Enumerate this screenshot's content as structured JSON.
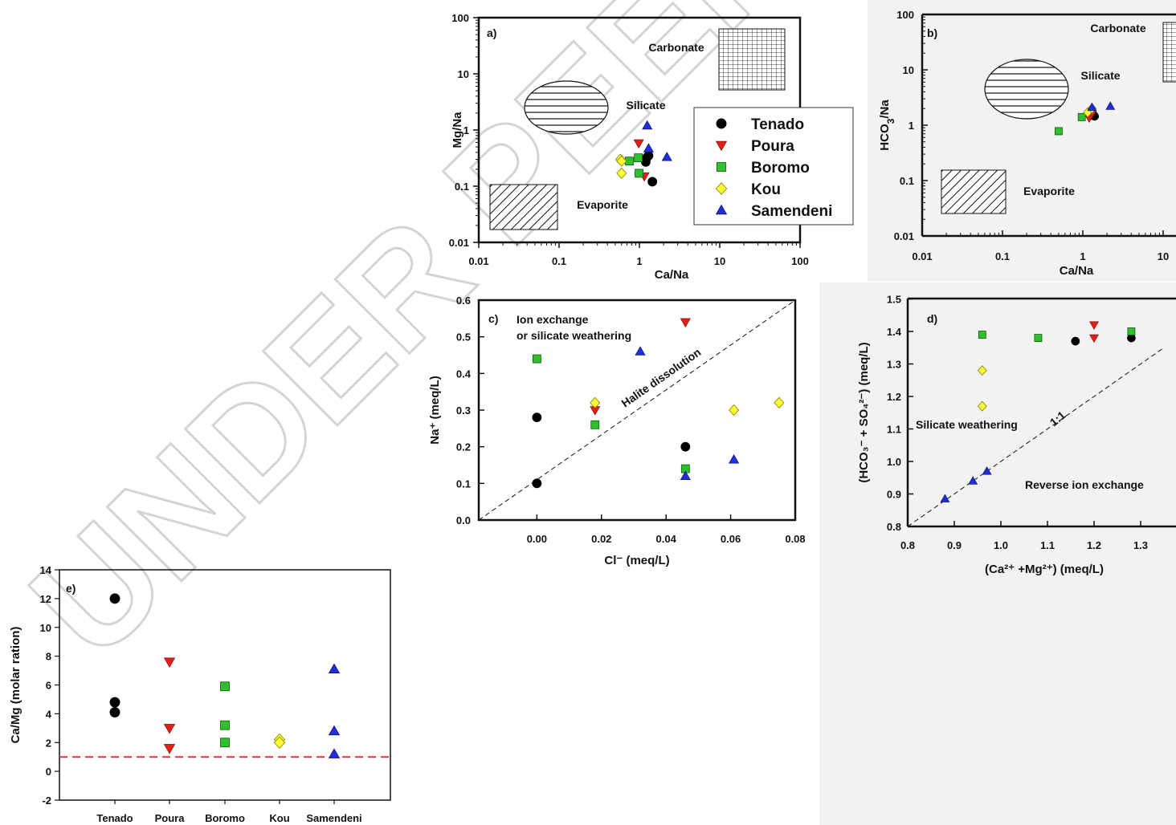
{
  "watermark": "UNDER PEER",
  "colors": {
    "Tenado": "#000000",
    "Poura": "#e0201a",
    "Boromo": "#2fbf2f",
    "Kou": "#ffff33",
    "Samendeni": "#1f2fd6",
    "ref_line": "#e03030"
  },
  "legend": [
    "Tenado",
    "Poura",
    "Boromo",
    "Kou",
    "Samendeni"
  ],
  "chart_data": [
    {
      "panel": "a)",
      "type": "scatter",
      "xlabel": "Ca/Na",
      "ylabel": "Mg/Na",
      "xscale": "log",
      "yscale": "log",
      "xlim": [
        0.01,
        100
      ],
      "ylim": [
        0.01,
        100
      ],
      "xticks": [
        "0.01",
        "0.1",
        "1",
        "10",
        "100"
      ],
      "yticks": [
        "0.01",
        "0.1",
        "1",
        "10",
        "100"
      ],
      "regions": [
        "Carbonate",
        "Silicate",
        "Evaporite"
      ],
      "legend_position": "right",
      "series": [
        {
          "name": "Tenado",
          "x": [
            1.2,
            1.25,
            1.3,
            1.45
          ],
          "y": [
            0.27,
            0.33,
            0.35,
            0.12
          ]
        },
        {
          "name": "Poura",
          "x": [
            0.98,
            1.15
          ],
          "y": [
            0.58,
            0.15
          ]
        },
        {
          "name": "Boromo",
          "x": [
            0.75,
            0.97,
            0.99
          ],
          "y": [
            0.28,
            0.32,
            0.17
          ]
        },
        {
          "name": "Kou",
          "x": [
            0.58,
            0.6,
            0.6
          ],
          "y": [
            0.3,
            0.28,
            0.17
          ]
        },
        {
          "name": "Samendeni",
          "x": [
            1.25,
            1.3,
            2.2
          ],
          "y": [
            1.2,
            0.47,
            0.33
          ]
        }
      ]
    },
    {
      "panel": "b)",
      "type": "scatter",
      "xlabel": "Ca/Na",
      "ylabel": "HCO3/Na",
      "xscale": "log",
      "yscale": "log",
      "xlim": [
        0.01,
        20
      ],
      "ylim": [
        0.01,
        100
      ],
      "xticks": [
        "0.01",
        "0.1",
        "1",
        "10"
      ],
      "yticks": [
        "0.01",
        "0.1",
        "1",
        "10",
        "100"
      ],
      "regions": [
        "Carbonate",
        "Silicate",
        "Evaporite"
      ],
      "series": [
        {
          "name": "Tenado",
          "x": [
            1.25,
            1.35,
            1.4
          ],
          "y": [
            1.5,
            1.55,
            1.45
          ]
        },
        {
          "name": "Poura",
          "x": [
            1.2,
            1.3
          ],
          "y": [
            1.35,
            1.6
          ]
        },
        {
          "name": "Boromo",
          "x": [
            0.5,
            0.97
          ],
          "y": [
            0.78,
            1.4
          ]
        },
        {
          "name": "Kou",
          "x": [
            1.15,
            1.3
          ],
          "y": [
            1.7,
            2.0
          ]
        },
        {
          "name": "Samendeni",
          "x": [
            1.3,
            2.2
          ],
          "y": [
            2.1,
            2.2
          ]
        }
      ]
    },
    {
      "panel": "c)",
      "type": "scatter",
      "xlabel": "Cl⁻ (meq/L)",
      "ylabel": "Na⁺ (meq/L)",
      "xlim": [
        -0.018,
        0.08
      ],
      "ylim": [
        0.0,
        0.6
      ],
      "xticks": [
        "0.00",
        "0.02",
        "0.04",
        "0.06",
        "0.08"
      ],
      "yticks": [
        "0.0",
        "0.1",
        "0.2",
        "0.3",
        "0.4",
        "0.5",
        "0.6"
      ],
      "annotations": [
        "Ion exchange",
        "or silicate weathering",
        "Halite dissolution"
      ],
      "series": [
        {
          "name": "Tenado",
          "x": [
            0.0,
            0.0,
            0.046
          ],
          "y": [
            0.28,
            0.1,
            0.2
          ]
        },
        {
          "name": "Poura",
          "x": [
            0.018,
            0.046
          ],
          "y": [
            0.3,
            0.54
          ]
        },
        {
          "name": "Boromo",
          "x": [
            0.0,
            0.018,
            0.046
          ],
          "y": [
            0.44,
            0.26,
            0.14
          ]
        },
        {
          "name": "Kou",
          "x": [
            0.018,
            0.061,
            0.075
          ],
          "y": [
            0.32,
            0.3,
            0.32
          ]
        },
        {
          "name": "Samendeni",
          "x": [
            0.032,
            0.046,
            0.061
          ],
          "y": [
            0.46,
            0.12,
            0.165
          ]
        }
      ]
    },
    {
      "panel": "d)",
      "type": "scatter",
      "xlabel": "(Ca²⁺ +Mg²⁺) (meq/L)",
      "ylabel": "(HCO₃⁻ + SO₄²⁻) (meq/L)",
      "xlim": [
        0.8,
        1.35
      ],
      "ylim": [
        0.8,
        1.5
      ],
      "xticks": [
        "0.8",
        "0.9",
        "1.0",
        "1.1",
        "1.2",
        "1.3"
      ],
      "yticks": [
        "0.8",
        "0.9",
        "1.0",
        "1.1",
        "1.2",
        "1.3",
        "1.4",
        "1.5"
      ],
      "annotations": [
        "Silicate weathering",
        "1:1",
        "Reverse ion exchange"
      ],
      "series": [
        {
          "name": "Tenado",
          "x": [
            1.16,
            1.28
          ],
          "y": [
            1.37,
            1.38
          ]
        },
        {
          "name": "Poura",
          "x": [
            1.2,
            1.2
          ],
          "y": [
            1.42,
            1.38
          ]
        },
        {
          "name": "Boromo",
          "x": [
            0.96,
            1.08,
            1.28
          ],
          "y": [
            1.39,
            1.38,
            1.4
          ]
        },
        {
          "name": "Kou",
          "x": [
            0.96,
            0.96
          ],
          "y": [
            1.28,
            1.17
          ]
        },
        {
          "name": "Samendeni",
          "x": [
            0.88,
            0.94,
            0.97
          ],
          "y": [
            0.885,
            0.94,
            0.97
          ]
        }
      ]
    },
    {
      "panel": "e)",
      "type": "scatter",
      "ylabel": "Ca/Mg (molar ration)",
      "ylim": [
        -2,
        14
      ],
      "yticks": [
        "-2",
        "0",
        "2",
        "4",
        "6",
        "8",
        "10",
        "12",
        "14"
      ],
      "categories": [
        "Tenado",
        "Poura",
        "Boromo",
        "Kou",
        "Samendeni"
      ],
      "reference_line": 1,
      "series": [
        {
          "name": "Tenado",
          "values": [
            12.0,
            4.8,
            4.1
          ]
        },
        {
          "name": "Poura",
          "values": [
            7.6,
            3.0,
            1.6
          ]
        },
        {
          "name": "Boromo",
          "values": [
            5.9,
            3.2,
            2.0
          ]
        },
        {
          "name": "Kou",
          "values": [
            2.2,
            2.0
          ]
        },
        {
          "name": "Samendeni",
          "values": [
            7.1,
            2.8,
            1.2
          ]
        }
      ]
    }
  ]
}
